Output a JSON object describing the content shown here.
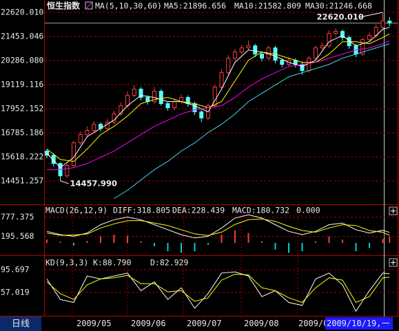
{
  "chart_data": [
    {
      "type": "candlestick",
      "title": "恒生指数",
      "indicator": "MA(5,10,30,60)",
      "up_color": "#ff3c3c",
      "down_color": "#54ffff",
      "ylim": [
        13318,
        22620.01
      ],
      "yticks": [
        {
          "value": 22620.01,
          "label": "22620.010"
        },
        21453.046,
        {
          "value": 20286.08,
          "label": "20286.080"
        },
        19119.116,
        17952.152,
        16785.186,
        15618.222,
        14451.257
      ],
      "grid": true,
      "ohlc": [
        [
          15900,
          16000,
          15550,
          15700
        ],
        [
          15700,
          15800,
          15150,
          15300
        ],
        [
          15300,
          15350,
          14457.99,
          14700
        ],
        [
          14700,
          15300,
          14600,
          15200
        ],
        [
          15200,
          16400,
          15100,
          16300
        ],
        [
          16300,
          16850,
          16200,
          16700
        ],
        [
          16700,
          17100,
          16550,
          16900
        ],
        [
          16900,
          17350,
          16800,
          17200
        ],
        [
          17200,
          17300,
          16850,
          17000
        ],
        [
          17000,
          17450,
          16900,
          17300
        ],
        [
          17300,
          17850,
          17200,
          17700
        ],
        [
          17700,
          18250,
          17600,
          18100
        ],
        [
          18100,
          18800,
          18000,
          18600
        ],
        [
          18600,
          19100,
          18500,
          18900
        ],
        [
          18900,
          19000,
          18350,
          18500
        ],
        [
          18500,
          18600,
          18150,
          18300
        ],
        [
          18300,
          19000,
          18200,
          18800
        ],
        [
          18800,
          18900,
          18100,
          18200
        ],
        [
          18200,
          18300,
          17850,
          18000
        ],
        [
          18000,
          18450,
          17900,
          18300
        ],
        [
          18300,
          18650,
          18200,
          18500
        ],
        [
          18500,
          18600,
          18050,
          18200
        ],
        [
          18200,
          18300,
          17650,
          17800
        ],
        [
          17800,
          17900,
          17300,
          17500
        ],
        [
          17500,
          18200,
          17400,
          18100
        ],
        [
          18100,
          19100,
          18000,
          19000
        ],
        [
          19000,
          19850,
          18900,
          19700
        ],
        [
          19700,
          20550,
          19600,
          20400
        ],
        [
          20400,
          20850,
          20300,
          20700
        ],
        [
          20700,
          21050,
          20600,
          20900
        ],
        [
          20900,
          21250,
          20800,
          21000
        ],
        [
          21000,
          21100,
          20450,
          20600
        ],
        [
          20600,
          20700,
          20250,
          20400
        ],
        [
          20400,
          21000,
          20300,
          20900
        ],
        [
          20900,
          21000,
          20150,
          20300
        ],
        [
          20300,
          20400,
          19950,
          20100
        ],
        [
          20100,
          20450,
          20000,
          20300
        ],
        [
          20300,
          20400,
          19950,
          20100
        ],
        [
          20100,
          20200,
          19600,
          19800
        ],
        [
          19800,
          20500,
          19700,
          20400
        ],
        [
          20400,
          21000,
          20300,
          20900
        ],
        [
          20900,
          21150,
          20800,
          21000
        ],
        [
          21000,
          21750,
          20900,
          21600
        ],
        [
          21600,
          21850,
          21500,
          21700
        ],
        [
          21700,
          21800,
          21250,
          21400
        ],
        [
          21400,
          21500,
          20850,
          21000
        ],
        [
          21000,
          21100,
          20450,
          20600
        ],
        [
          20600,
          21400,
          20500,
          21300
        ],
        [
          21300,
          21650,
          21200,
          21500
        ],
        [
          21500,
          22050,
          21400,
          21900
        ],
        [
          21900,
          22620.01,
          21800,
          22200
        ],
        [
          22200,
          22400,
          21950,
          22100
        ]
      ],
      "x": [
        0,
        2,
        4,
        6,
        8,
        10,
        12,
        14,
        16,
        18,
        20,
        22,
        24,
        26,
        28,
        30,
        32,
        34,
        36,
        38,
        40,
        42,
        44,
        46,
        48,
        50,
        51
      ],
      "series": [
        {
          "name": "MA5",
          "label": "MA5:21896.656",
          "color": "#ffffff",
          "values": [
            15800,
            15100,
            15600,
            16600,
            17000,
            17400,
            18100,
            18600,
            18500,
            18300,
            18300,
            18100,
            17800,
            18900,
            20200,
            20800,
            20700,
            20500,
            20200,
            20000,
            20300,
            21200,
            21500,
            21000,
            21200,
            21800,
            21896.656
          ]
        },
        {
          "name": "MA10",
          "label": "MA10:21582.809",
          "color": "#ffff00",
          "values": [
            16000,
            15500,
            15400,
            16000,
            16700,
            17100,
            17600,
            18200,
            18400,
            18500,
            18300,
            18200,
            18000,
            18300,
            19300,
            20300,
            20700,
            20600,
            20400,
            20200,
            20200,
            20600,
            21200,
            21200,
            21100,
            21400,
            21582.809
          ]
        },
        {
          "name": "MA30",
          "label": "MA30:21246.668",
          "color": "#ff00ff",
          "values": [
            15000,
            15000,
            15100,
            15300,
            15600,
            15900,
            16300,
            16700,
            17100,
            17400,
            17700,
            17900,
            18000,
            18100,
            18500,
            19000,
            19400,
            19700,
            20000,
            20100,
            20200,
            20400,
            20600,
            20800,
            20900,
            21100,
            21246.668
          ]
        },
        {
          "name": "MA60",
          "color": "#40d8e8",
          "values": [
            null,
            null,
            null,
            null,
            null,
            13600,
            14000,
            14500,
            15000,
            15400,
            15900,
            16300,
            16800,
            17200,
            17700,
            18300,
            18700,
            19100,
            19500,
            19700,
            19900,
            20100,
            20400,
            20600,
            20800,
            21000,
            21100
          ]
        }
      ],
      "annotations": [
        {
          "value": 22620.01,
          "label": "22620.010"
        },
        {
          "value": 14457.99,
          "label": "14457.990"
        }
      ]
    },
    {
      "type": "macd",
      "title": "MACD(26,12,9)",
      "ylim": [
        -353,
        935
      ],
      "yticks": [
        777.375,
        195.568
      ],
      "grid": true,
      "x": [
        0,
        2,
        4,
        6,
        8,
        10,
        12,
        14,
        16,
        18,
        20,
        22,
        24,
        26,
        28,
        30,
        32,
        34,
        36,
        38,
        40,
        42,
        44,
        46,
        48,
        50,
        51
      ],
      "histogram": {
        "label": "MACD:180.732",
        "color": "#ff00ff",
        "up_color": "#ff3c3c",
        "down_color": "#00d0d0",
        "values": [
          100,
          40,
          -80,
          60,
          200,
          250,
          220,
          50,
          -100,
          -250,
          -300,
          -250,
          -50,
          250,
          380,
          300,
          50,
          -200,
          -300,
          -250,
          50,
          200,
          100,
          -250,
          -150,
          120,
          180.732
        ]
      },
      "series": [
        {
          "name": "DIFF",
          "label": "DIFF:318.805",
          "color": "#ffffff",
          "values": [
            350,
            250,
            200,
            300,
            550,
            700,
            780,
            700,
            550,
            400,
            250,
            150,
            200,
            450,
            750,
            850,
            750,
            550,
            350,
            250,
            350,
            550,
            600,
            400,
            300,
            380,
            318.805
          ]
        },
        {
          "name": "DEA",
          "label": "DEA:228.439",
          "color": "#ffff00",
          "values": [
            300,
            230,
            240,
            270,
            450,
            575,
            670,
            675,
            600,
            525,
            400,
            275,
            225,
            325,
            560,
            700,
            725,
            650,
            500,
            375,
            325,
            450,
            550,
            525,
            375,
            320,
            228.439
          ]
        }
      ],
      "zero_label": "0.000"
    },
    {
      "type": "kd",
      "title": "KD(9,3,3)",
      "ylim": [
        18.3,
        115.6
      ],
      "yticks": [
        95.697,
        57.019
      ],
      "grid": true,
      "x": [
        0,
        2,
        4,
        6,
        8,
        10,
        12,
        14,
        16,
        18,
        20,
        22,
        24,
        26,
        28,
        30,
        32,
        34,
        36,
        38,
        40,
        42,
        44,
        46,
        48,
        50,
        51
      ],
      "series": [
        {
          "name": "K",
          "label": "K:88.790",
          "color": "#ffffff",
          "values": [
            80,
            45,
            40,
            85,
            80,
            85,
            90,
            60,
            75,
            45,
            65,
            30,
            55,
            90,
            92,
            85,
            50,
            60,
            40,
            35,
            80,
            90,
            70,
            25,
            60,
            90,
            88.79
          ]
        },
        {
          "name": "D",
          "label": "D:82.929",
          "color": "#ffff00",
          "values": [
            75,
            55,
            45,
            70,
            80,
            82,
            86,
            72,
            72,
            58,
            60,
            42,
            48,
            78,
            88,
            87,
            65,
            60,
            48,
            40,
            65,
            82,
            78,
            40,
            50,
            82,
            82.929
          ]
        }
      ]
    }
  ],
  "time_axis": {
    "period": "日线",
    "labels": [
      "2009/05",
      "2009/06",
      "2009/07",
      "2009/08",
      "2009/0"
    ],
    "cursor_date": "2009/10/19,一"
  }
}
